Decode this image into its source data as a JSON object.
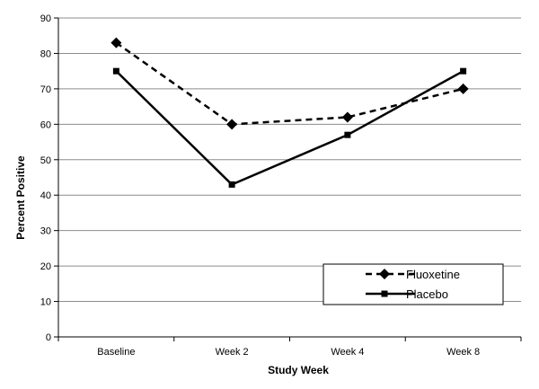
{
  "chart_data": {
    "type": "line",
    "categories": [
      "Baseline",
      "Week 2",
      "Week 4",
      "Week 8"
    ],
    "series": [
      {
        "name": "Fluoxetine",
        "values": [
          83,
          60,
          62,
          70
        ],
        "line_style": "dashed",
        "marker": "diamond",
        "color": "#000000"
      },
      {
        "name": "Placebo",
        "values": [
          75,
          43,
          57,
          75
        ],
        "line_style": "solid",
        "marker": "square",
        "color": "#000000"
      }
    ],
    "title": "",
    "xlabel": "Study Week",
    "ylabel": "Percent  Positive",
    "ylim": [
      0,
      90
    ],
    "yticks": [
      0,
      10,
      20,
      30,
      40,
      50,
      60,
      70,
      80,
      90
    ],
    "grid": true,
    "legend_position": "bottom-right"
  }
}
